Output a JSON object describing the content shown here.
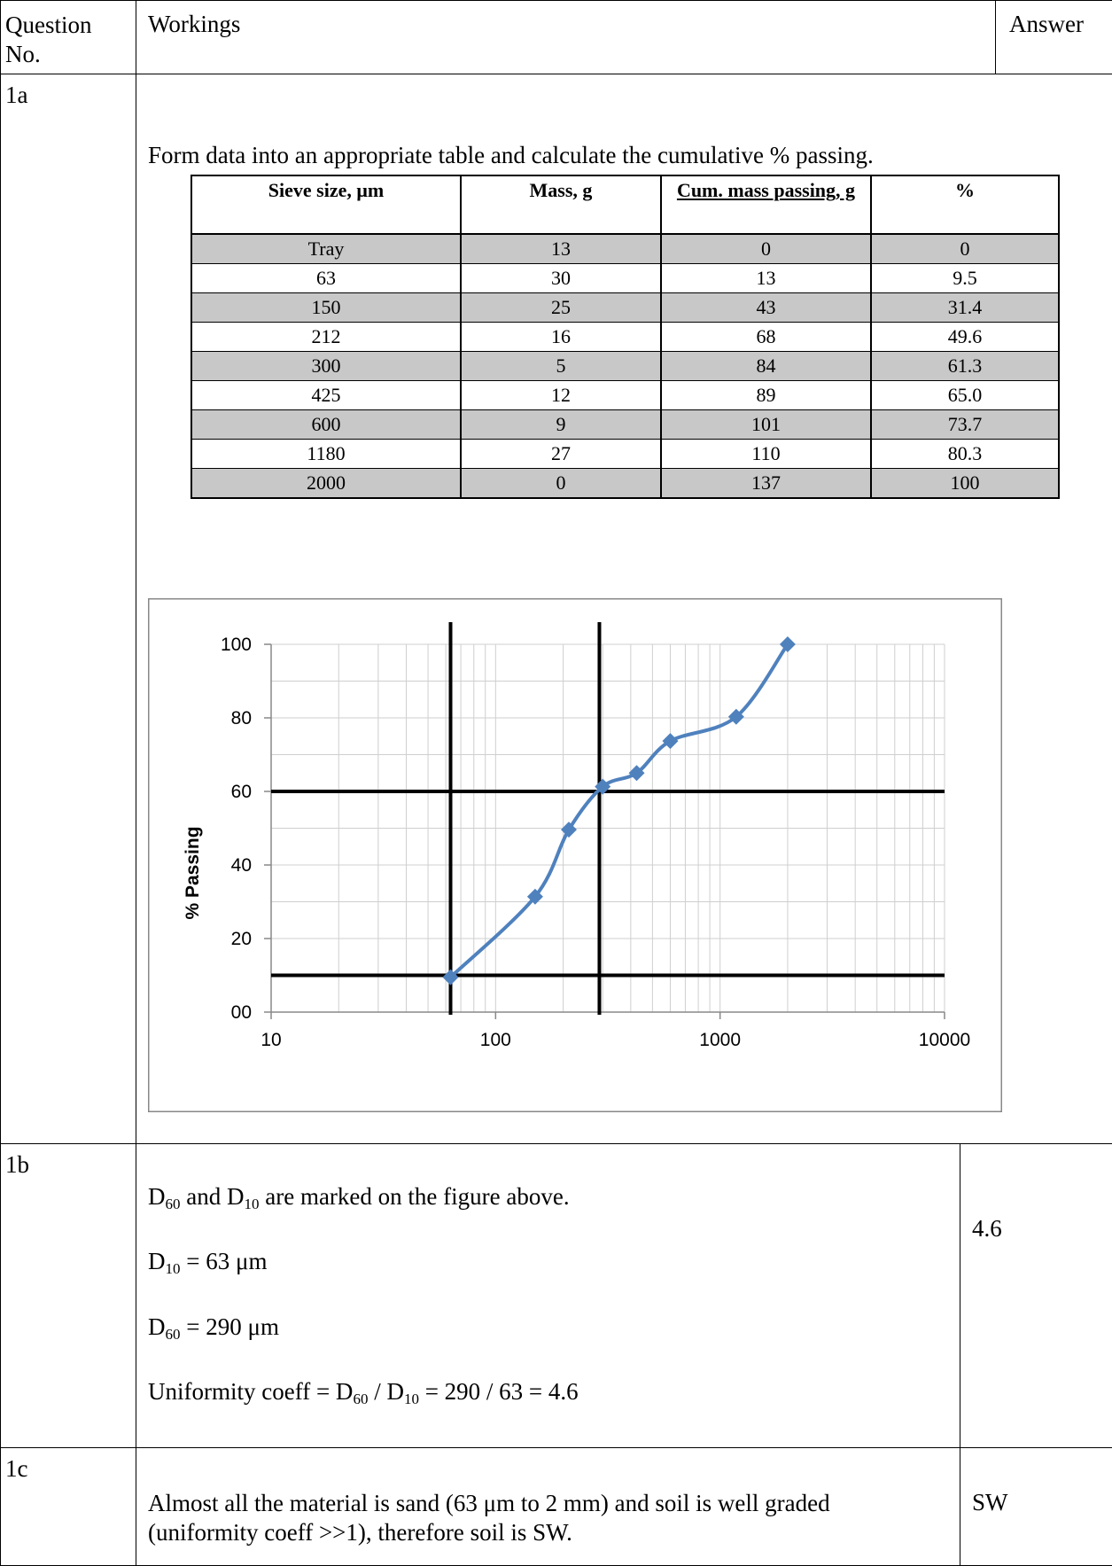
{
  "header": {
    "question_no": "Question No.",
    "workings": "Workings",
    "answer": "Answer"
  },
  "q1a": {
    "label": "1a",
    "instruction": "Form data into an appropriate table and calculate the cumulative % passing.",
    "table": {
      "headers": [
        "Sieve size, μm",
        "Mass, g",
        "Cum. mass passing, g",
        "%"
      ],
      "rows": [
        [
          "Tray",
          "13",
          "0",
          "0"
        ],
        [
          "63",
          "30",
          "13",
          "9.5"
        ],
        [
          "150",
          "25",
          "43",
          "31.4"
        ],
        [
          "212",
          "16",
          "68",
          "49.6"
        ],
        [
          "300",
          "5",
          "84",
          "61.3"
        ],
        [
          "425",
          "12",
          "89",
          "65.0"
        ],
        [
          "600",
          "9",
          "101",
          "73.7"
        ],
        [
          "1180",
          "27",
          "110",
          "80.3"
        ],
        [
          "2000",
          "0",
          "137",
          "100"
        ]
      ]
    }
  },
  "chart_data": {
    "type": "line",
    "title": "",
    "xlabel": "",
    "ylabel": "% Passing",
    "x_scale": "log",
    "xlim": [
      10,
      10000
    ],
    "ylim": [
      0,
      100
    ],
    "x_ticks": [
      "10",
      "100",
      "1000",
      "10000"
    ],
    "y_ticks": [
      "00",
      "20",
      "40",
      "60",
      "80",
      "100"
    ],
    "grid": true,
    "series": [
      {
        "marker": "diamond",
        "color": "#4f81bd",
        "points": [
          {
            "x": 63,
            "y": 9.5
          },
          {
            "x": 150,
            "y": 31.4
          },
          {
            "x": 212,
            "y": 49.6
          },
          {
            "x": 300,
            "y": 61.3
          },
          {
            "x": 425,
            "y": 65.0
          },
          {
            "x": 600,
            "y": 73.7
          },
          {
            "x": 1180,
            "y": 80.3
          },
          {
            "x": 2000,
            "y": 100
          }
        ]
      }
    ],
    "reference_lines": {
      "horizontal_y": [
        10,
        60
      ],
      "vertical_x": [
        63,
        290
      ]
    }
  },
  "q1b": {
    "label": "1b",
    "line1_a": "D",
    "line1_sub1": "60",
    "line1_b": " and D",
    "line1_sub2": "10",
    "line1_c": " are marked on the figure above.",
    "d10_prefix": "D",
    "d10_sub": "10",
    "d10_value": " = 63 μm",
    "d60_prefix": "D",
    "d60_sub": "60",
    "d60_value": " = 290 μm",
    "uc_a": "Uniformity coeff = D",
    "uc_sub1": "60",
    "uc_b": " / D",
    "uc_sub2": "10",
    "uc_c": " = 290 / 63 = 4.6",
    "answer": "4.6"
  },
  "q1c": {
    "label": "1c",
    "text": "Almost all the material is sand (63 μm to 2 mm) and soil is well graded (uniformity coeff >>1), therefore soil is SW.",
    "answer": "SW"
  }
}
